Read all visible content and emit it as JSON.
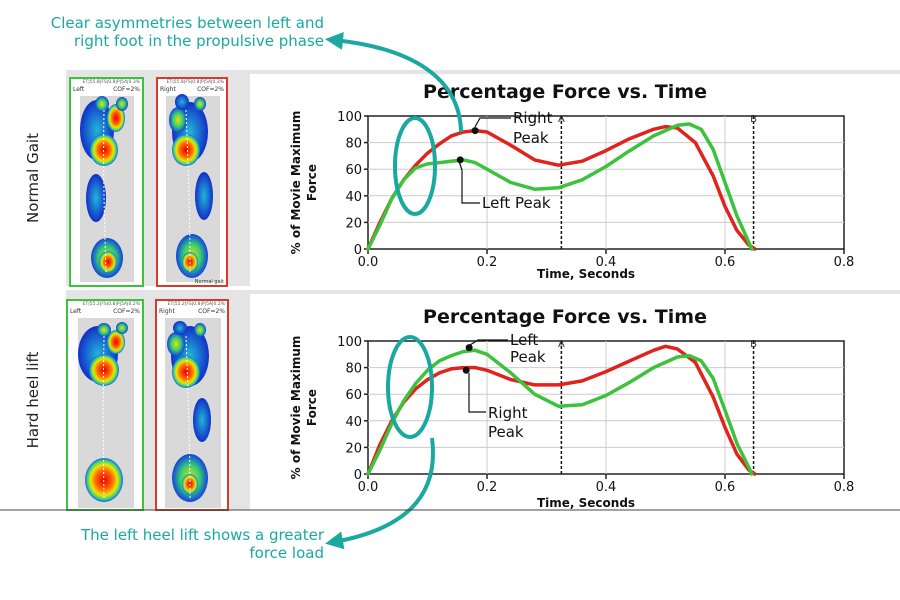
{
  "callouts": {
    "top": "Clear asymmetries between left and right foot in the propulsive phase",
    "bottom": "The left heel lift shows a greater force load"
  },
  "rows": [
    {
      "label": "Normal Gait",
      "insole_left": {
        "side": "Left",
        "cof": "COF=2%",
        "header": "ET|55.8|FS|0.8|P|5A|0.3%",
        "footer": ""
      },
      "insole_right": {
        "side": "Right",
        "cof": "COF=2%",
        "header": "ET|55.8|FS|0.8|P|5A|0.3%",
        "footer": "Normal gait"
      }
    },
    {
      "label": "Hard heel lift",
      "insole_left": {
        "side": "Left",
        "cof": "COF=2%",
        "header": "ET|55.2|FS|0.8|P|5A|0.2%",
        "footer": ""
      },
      "insole_right": {
        "side": "Right",
        "cof": "COF=2%",
        "header": "ET|55.2|FS|0.8|P|5A|0.2%",
        "footer": ""
      }
    }
  ],
  "colors": {
    "teal": "#1aa9a0",
    "right_series": "#e0231d",
    "left_series": "#3cc23c",
    "insole_left_border": "#3cc23c",
    "insole_right_border": "#d63a2a"
  },
  "chart_data": [
    {
      "type": "line",
      "title": "Percentage Force vs. Time",
      "xlabel": "Time, Seconds",
      "ylabel": "% of Movie Maximum Force",
      "xlim": [
        0,
        0.8
      ],
      "ylim": [
        0,
        100
      ],
      "xticks": [
        "0.0",
        "0.2",
        "0.4",
        "0.6",
        "0.8"
      ],
      "yticks": [
        "0",
        "20",
        "40",
        "60",
        "80",
        "100"
      ],
      "markers": [
        {
          "label": "A",
          "x": 0.325
        },
        {
          "label": "B",
          "x": 0.648
        }
      ],
      "series": [
        {
          "color_key": "right_series",
          "x": [
            0,
            0.02,
            0.04,
            0.06,
            0.08,
            0.1,
            0.12,
            0.14,
            0.16,
            0.18,
            0.2,
            0.24,
            0.28,
            0.32,
            0.36,
            0.4,
            0.44,
            0.48,
            0.5,
            0.52,
            0.55,
            0.58,
            0.6,
            0.62,
            0.64,
            0.65
          ],
          "y": [
            0,
            20,
            38,
            52,
            63,
            72,
            79,
            85,
            88,
            89,
            88,
            78,
            67,
            63,
            66,
            74,
            83,
            90,
            92,
            91,
            80,
            55,
            32,
            14,
            3,
            0
          ]
        },
        {
          "color_key": "left_series",
          "x": [
            0,
            0.02,
            0.04,
            0.06,
            0.08,
            0.1,
            0.12,
            0.14,
            0.16,
            0.18,
            0.2,
            0.24,
            0.28,
            0.32,
            0.36,
            0.4,
            0.44,
            0.48,
            0.52,
            0.54,
            0.56,
            0.58,
            0.6,
            0.62,
            0.64,
            0.645
          ],
          "y": [
            0,
            18,
            38,
            52,
            61,
            64,
            65,
            66,
            67,
            65,
            60,
            50,
            45,
            46,
            52,
            62,
            74,
            85,
            93,
            94,
            90,
            75,
            50,
            25,
            5,
            0
          ]
        }
      ],
      "annotations": [
        {
          "text": "Right Peak",
          "x": 0.18,
          "y": 89
        },
        {
          "text": "Left Peak",
          "x": 0.155,
          "y": 67
        }
      ]
    },
    {
      "type": "line",
      "title": "Percentage Force vs. Time",
      "xlabel": "Time, Seconds",
      "ylabel": "% of Movie Maximum Force",
      "xlim": [
        0,
        0.8
      ],
      "ylim": [
        0,
        100
      ],
      "xticks": [
        "0.0",
        "0.2",
        "0.4",
        "0.6",
        "0.8"
      ],
      "yticks": [
        "0",
        "20",
        "40",
        "60",
        "80",
        "100"
      ],
      "markers": [
        {
          "label": "A",
          "x": 0.325
        },
        {
          "label": "B",
          "x": 0.648
        }
      ],
      "series": [
        {
          "color_key": "right_series",
          "x": [
            0,
            0.02,
            0.04,
            0.06,
            0.08,
            0.1,
            0.12,
            0.14,
            0.16,
            0.18,
            0.2,
            0.24,
            0.28,
            0.32,
            0.36,
            0.4,
            0.44,
            0.48,
            0.5,
            0.52,
            0.55,
            0.58,
            0.6,
            0.62,
            0.64,
            0.65
          ],
          "y": [
            0,
            22,
            40,
            54,
            64,
            71,
            76,
            79,
            80,
            80,
            78,
            71,
            67,
            67,
            70,
            77,
            85,
            93,
            96,
            94,
            84,
            58,
            35,
            15,
            3,
            0
          ]
        },
        {
          "color_key": "left_series",
          "x": [
            0,
            0.02,
            0.04,
            0.06,
            0.08,
            0.1,
            0.12,
            0.14,
            0.16,
            0.18,
            0.2,
            0.24,
            0.28,
            0.32,
            0.36,
            0.4,
            0.44,
            0.48,
            0.52,
            0.54,
            0.56,
            0.58,
            0.6,
            0.62,
            0.64,
            0.645
          ],
          "y": [
            0,
            18,
            38,
            55,
            68,
            78,
            85,
            89,
            92,
            93,
            90,
            76,
            60,
            51,
            52,
            59,
            69,
            80,
            88,
            89,
            85,
            72,
            48,
            23,
            5,
            0
          ]
        }
      ],
      "annotations": [
        {
          "text": "Left Peak",
          "x": 0.17,
          "y": 95
        },
        {
          "text": "Right Peak",
          "x": 0.165,
          "y": 78
        }
      ]
    }
  ]
}
